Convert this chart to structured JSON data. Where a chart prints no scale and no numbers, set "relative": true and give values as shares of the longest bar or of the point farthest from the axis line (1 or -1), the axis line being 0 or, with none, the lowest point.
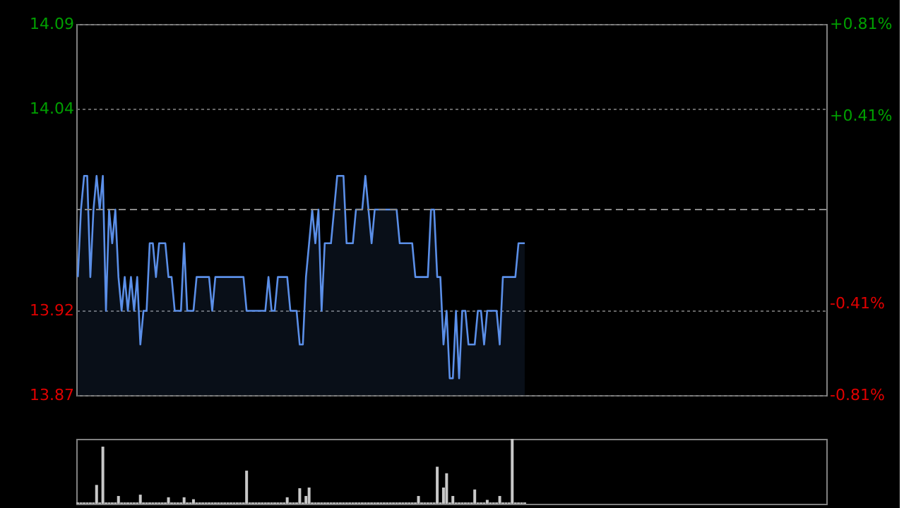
{
  "chart_data": [
    {
      "type": "area",
      "categories": [
        null,
        null,
        null,
        null,
        null,
        null,
        null,
        null,
        null,
        null,
        null,
        null,
        null,
        null,
        null,
        null,
        null,
        null,
        null,
        null,
        null,
        null,
        null,
        null,
        null,
        null,
        null,
        null,
        null,
        null,
        null,
        null,
        null,
        null,
        null,
        null,
        null,
        null,
        null,
        null,
        null,
        null,
        null,
        null,
        null,
        null,
        null,
        null,
        null,
        null,
        null,
        null,
        null,
        null,
        null,
        null,
        null,
        null,
        null,
        null,
        null,
        null,
        null,
        null,
        null,
        null,
        null,
        null,
        null,
        null,
        null,
        null,
        null,
        null,
        null,
        null,
        null,
        null,
        null,
        null,
        null,
        null,
        null,
        null,
        null,
        null,
        null,
        null,
        null,
        null,
        null,
        null,
        null,
        null,
        null,
        null,
        null,
        null,
        null,
        null,
        null,
        null,
        null,
        null,
        null,
        null,
        null,
        null,
        null,
        null,
        null,
        null,
        null,
        null,
        null,
        null,
        null,
        null,
        null,
        null,
        null,
        null,
        null,
        null,
        null,
        null,
        null,
        null,
        null,
        null,
        null,
        null,
        null,
        null,
        null,
        null,
        null,
        null,
        null,
        null,
        null,
        null,
        null,
        null,
        null,
        null,
        null,
        null,
        null,
        null,
        null,
        null,
        null,
        null,
        null,
        null,
        null,
        null,
        null,
        null,
        null,
        null,
        null,
        null,
        null,
        null,
        null,
        null,
        null,
        null,
        null,
        null,
        null,
        null,
        null,
        null,
        null,
        null,
        null,
        null,
        null,
        null,
        null,
        null,
        null,
        null,
        null,
        null,
        null,
        null,
        null,
        null,
        null,
        null,
        null,
        null,
        null,
        null,
        null,
        null,
        null,
        null,
        null,
        null,
        null,
        null,
        null,
        null,
        null,
        null,
        null,
        null,
        null,
        null,
        null,
        null,
        null,
        null,
        null,
        null,
        null,
        null,
        null,
        null,
        null,
        null,
        null,
        null,
        null,
        null,
        null,
        null,
        null,
        null,
        null,
        null,
        null,
        null,
        null,
        null
      ],
      "series": [
        {
          "color": "#5b8fe8",
          "values": [
            13.94,
            13.98,
            14.0,
            14.0,
            13.94,
            13.98,
            14.0,
            13.98,
            14.0,
            13.92,
            13.98,
            13.96,
            13.98,
            13.94,
            13.92,
            13.94,
            13.92,
            13.94,
            13.92,
            13.94,
            13.9,
            13.92,
            13.92,
            13.96,
            13.96,
            13.94,
            13.96,
            13.96,
            13.96,
            13.94,
            13.94,
            13.92,
            13.92,
            13.92,
            13.96,
            13.92,
            13.92,
            13.92,
            13.94,
            13.94,
            13.94,
            13.94,
            13.94,
            13.92,
            13.94,
            13.94,
            13.94,
            13.94,
            13.94,
            13.94,
            13.94,
            13.94,
            13.94,
            13.94,
            13.92,
            13.92,
            13.92,
            13.92,
            13.92,
            13.92,
            13.92,
            13.94,
            13.92,
            13.92,
            13.94,
            13.94,
            13.94,
            13.94,
            13.92,
            13.92,
            13.92,
            13.9,
            13.9,
            13.94,
            13.96,
            13.98,
            13.96,
            13.98,
            13.92,
            13.96,
            13.96,
            13.96,
            13.98,
            14.0,
            14.0,
            14.0,
            13.96,
            13.96,
            13.96,
            13.98,
            13.98,
            13.98,
            14.0,
            13.98,
            13.96,
            13.98,
            13.98,
            13.98,
            13.98,
            13.98,
            13.98,
            13.98,
            13.98,
            13.96,
            13.96,
            13.96,
            13.96,
            13.96,
            13.94,
            13.94,
            13.94,
            13.94,
            13.94,
            13.98,
            13.98,
            13.94,
            13.94,
            13.9,
            13.92,
            13.88,
            13.88,
            13.92,
            13.88,
            13.92,
            13.92,
            13.9,
            13.9,
            13.9,
            13.92,
            13.92,
            13.9,
            13.92,
            13.92,
            13.92,
            13.92,
            13.9,
            13.94,
            13.94,
            13.94,
            13.94,
            13.94,
            13.96,
            13.96,
            13.96,
            null,
            null,
            null,
            null,
            null,
            null,
            null,
            null,
            null,
            null,
            null,
            null,
            null,
            null,
            null,
            null,
            null,
            null,
            null,
            null,
            null,
            null,
            null,
            null,
            null,
            null,
            null,
            null,
            null,
            null,
            null,
            null,
            null,
            null,
            null,
            null,
            null,
            null,
            null,
            null,
            null,
            null,
            null,
            null,
            null,
            null,
            null,
            null,
            null,
            null,
            null,
            null,
            null,
            null,
            null,
            null,
            null,
            null,
            null,
            null,
            null,
            null,
            null,
            null,
            null,
            null,
            null,
            null,
            null,
            null,
            null,
            null,
            null,
            null,
            null,
            null,
            null,
            null,
            null,
            null,
            null,
            null,
            null,
            null,
            null,
            null,
            null,
            null,
            null,
            null,
            null,
            null,
            null,
            null,
            null,
            null
          ]
        }
      ],
      "ylim": [
        13.87,
        14.09
      ],
      "yticks": [
        13.87,
        13.92,
        14.04,
        14.09
      ],
      "y2lim": [
        -0.81,
        0.81
      ],
      "y2ticks": [
        {
          "value": -0.81,
          "label": "-0.81%"
        },
        {
          "value": -0.41,
          "label": "-0.41%"
        },
        {
          "value": 0.41,
          "label": "+0.41%"
        },
        {
          "value": 0.81,
          "label": "+0.81%"
        }
      ],
      "ref_lines": [
        {
          "axis": "y2",
          "value": 0,
          "color": "#8a8a8a",
          "line_style": "dashed"
        }
      ],
      "grid": "y",
      "tick_labels": "y"
    },
    {
      "type": "bar",
      "relative": true,
      "categories": [
        null,
        null,
        null,
        null,
        null,
        null,
        null,
        null,
        null,
        null,
        null,
        null,
        null,
        null,
        null,
        null,
        null,
        null,
        null,
        null,
        null,
        null,
        null,
        null,
        null,
        null,
        null,
        null,
        null,
        null,
        null,
        null,
        null,
        null,
        null,
        null,
        null,
        null,
        null,
        null,
        null,
        null,
        null,
        null,
        null,
        null,
        null,
        null,
        null,
        null,
        null,
        null,
        null,
        null,
        null,
        null,
        null,
        null,
        null,
        null,
        null,
        null,
        null,
        null,
        null,
        null,
        null,
        null,
        null,
        null,
        null,
        null,
        null,
        null,
        null,
        null,
        null,
        null,
        null,
        null,
        null,
        null,
        null,
        null,
        null,
        null,
        null,
        null,
        null,
        null,
        null,
        null,
        null,
        null,
        null,
        null,
        null,
        null,
        null,
        null,
        null,
        null,
        null,
        null,
        null,
        null,
        null,
        null,
        null,
        null,
        null,
        null,
        null,
        null,
        null,
        null,
        null,
        null,
        null,
        null,
        null,
        null,
        null,
        null,
        null,
        null,
        null,
        null,
        null,
        null,
        null,
        null,
        null,
        null,
        null,
        null,
        null,
        null,
        null,
        null,
        null,
        null,
        null,
        null,
        null,
        null,
        null,
        null,
        null,
        null,
        null,
        null,
        null,
        null,
        null,
        null,
        null,
        null,
        null,
        null,
        null,
        null,
        null,
        null,
        null,
        null,
        null,
        null,
        null,
        null,
        null,
        null,
        null,
        null,
        null,
        null,
        null,
        null,
        null,
        null,
        null,
        null,
        null,
        null,
        null,
        null,
        null,
        null,
        null,
        null,
        null,
        null,
        null,
        null,
        null,
        null,
        null,
        null,
        null,
        null,
        null,
        null,
        null,
        null,
        null,
        null,
        null,
        null,
        null,
        null,
        null,
        null,
        null,
        null,
        null,
        null,
        null,
        null,
        null,
        null,
        null,
        null,
        null,
        null,
        null,
        null,
        null,
        null,
        null,
        null,
        null,
        null,
        null,
        null,
        null,
        null,
        null,
        null,
        null,
        null
      ],
      "values": [
        0.02,
        0.02,
        0.02,
        0.02,
        0.02,
        0.02,
        0.29,
        0.02,
        0.88,
        0.02,
        0.02,
        0.02,
        0.02,
        0.12,
        0.02,
        0.02,
        0.02,
        0.02,
        0.02,
        0.02,
        0.14,
        0.02,
        0.02,
        0.02,
        0.02,
        0.02,
        0.02,
        0.02,
        0.02,
        0.1,
        0.02,
        0.02,
        0.02,
        0.02,
        0.1,
        0.02,
        0.02,
        0.07,
        0.02,
        0.02,
        0.02,
        0.02,
        0.02,
        0.02,
        0.02,
        0.02,
        0.02,
        0.02,
        0.02,
        0.02,
        0.02,
        0.02,
        0.02,
        0.02,
        0.51,
        0.02,
        0.02,
        0.02,
        0.02,
        0.02,
        0.02,
        0.02,
        0.02,
        0.02,
        0.02,
        0.02,
        0.02,
        0.1,
        0.02,
        0.02,
        0.02,
        0.24,
        0.02,
        0.12,
        0.25,
        0.02,
        0.02,
        0.02,
        0.02,
        0.02,
        0.02,
        0.02,
        0.02,
        0.02,
        0.02,
        0.02,
        0.02,
        0.02,
        0.02,
        0.02,
        0.02,
        0.02,
        0.02,
        0.02,
        0.02,
        0.02,
        0.02,
        0.02,
        0.02,
        0.02,
        0.02,
        0.02,
        0.02,
        0.02,
        0.02,
        0.02,
        0.02,
        0.02,
        0.02,
        0.12,
        0.02,
        0.02,
        0.02,
        0.02,
        0.02,
        0.57,
        0.02,
        0.25,
        0.47,
        0.02,
        0.12,
        0.02,
        0.02,
        0.02,
        0.02,
        0.02,
        0.02,
        0.22,
        0.02,
        0.02,
        0.02,
        0.06,
        0.02,
        0.02,
        0.02,
        0.12,
        0.02,
        0.02,
        0.02,
        1,
        0.02,
        0.02,
        0.02,
        0.02,
        null,
        null,
        null,
        null,
        null,
        null,
        null,
        null,
        null,
        null,
        null,
        null,
        null,
        null,
        null,
        null,
        null,
        null,
        null,
        null,
        null,
        null,
        null,
        null,
        null,
        null,
        null,
        null,
        null,
        null,
        null,
        null,
        null,
        null,
        null,
        null,
        null,
        null,
        null,
        null,
        null,
        null,
        null,
        null,
        null,
        null,
        null,
        null,
        null,
        null,
        null,
        null,
        null,
        null,
        null,
        null,
        null,
        null,
        null,
        null,
        null,
        null,
        null,
        null,
        null,
        null,
        null,
        null,
        null,
        null,
        null,
        null,
        null,
        null,
        null,
        null,
        null,
        null,
        null,
        null,
        null,
        null,
        null,
        null,
        null,
        null,
        null,
        null,
        null,
        null,
        null,
        null,
        null,
        null,
        null,
        null
      ],
      "color": "#c8c8c8",
      "tick_labels": false
    }
  ]
}
